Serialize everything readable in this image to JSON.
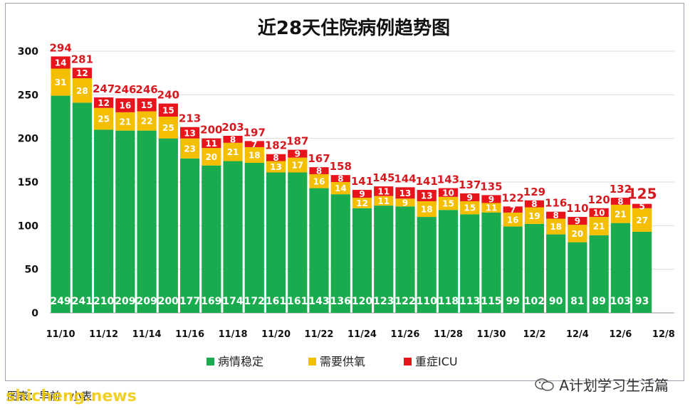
{
  "chart_data": {
    "type": "bar",
    "stacked": true,
    "title": "近28天住院病例趋势图",
    "categories": [
      "11/10",
      "11/11",
      "11/12",
      "11/13",
      "11/14",
      "11/15",
      "11/16",
      "11/17",
      "11/18",
      "11/19",
      "11/20",
      "11/21",
      "11/22",
      "11/23",
      "11/24",
      "11/25",
      "11/26",
      "11/27",
      "11/28",
      "11/29",
      "11/30",
      "12/1",
      "12/2",
      "12/3",
      "12/4",
      "12/5",
      "12/6",
      "12/7"
    ],
    "xtick_labels": [
      "11/10",
      "11/12",
      "11/14",
      "11/16",
      "11/18",
      "11/20",
      "11/22",
      "11/24",
      "11/26",
      "11/28",
      "11/30",
      "12/2",
      "12/4",
      "12/6",
      "12/8"
    ],
    "ylim": [
      0,
      300
    ],
    "yticks": [
      0,
      50,
      100,
      150,
      200,
      250,
      300
    ],
    "grid": true,
    "legend_position": "bottom",
    "series": [
      {
        "name": "病情稳定",
        "color": "#1aab4e",
        "values": [
          249,
          241,
          210,
          209,
          209,
          200,
          177,
          169,
          174,
          172,
          161,
          161,
          143,
          136,
          120,
          123,
          122,
          110,
          118,
          113,
          115,
          99,
          102,
          90,
          81,
          89,
          103,
          93
        ]
      },
      {
        "name": "需要供氧",
        "color": "#f4bf00",
        "values": [
          31,
          28,
          25,
          21,
          22,
          25,
          23,
          20,
          21,
          18,
          13,
          17,
          16,
          14,
          12,
          11,
          9,
          18,
          15,
          15,
          11,
          16,
          19,
          18,
          20,
          21,
          21,
          27
        ]
      },
      {
        "name": "重症ICU",
        "color": "#e8141b",
        "values": [
          14,
          12,
          12,
          16,
          15,
          15,
          13,
          11,
          8,
          7,
          8,
          9,
          8,
          8,
          9,
          11,
          13,
          13,
          10,
          9,
          9,
          7,
          8,
          8,
          9,
          10,
          8,
          5
        ]
      }
    ],
    "totals": [
      294,
      281,
      247,
      246,
      246,
      240,
      213,
      200,
      203,
      197,
      182,
      187,
      167,
      158,
      141,
      145,
      144,
      141,
      143,
      137,
      135,
      122,
      129,
      116,
      110,
      120,
      132,
      125
    ]
  },
  "footer": {
    "source_text": "图表：早前 · 小表",
    "watermark_text": "A计划学习生活篇",
    "site_text": "shicheng.news"
  },
  "colors": {
    "total_label": "#d6191f",
    "inner_label": "#ffffff",
    "grid": "#dcdcdc",
    "axis_text": "#111111"
  }
}
